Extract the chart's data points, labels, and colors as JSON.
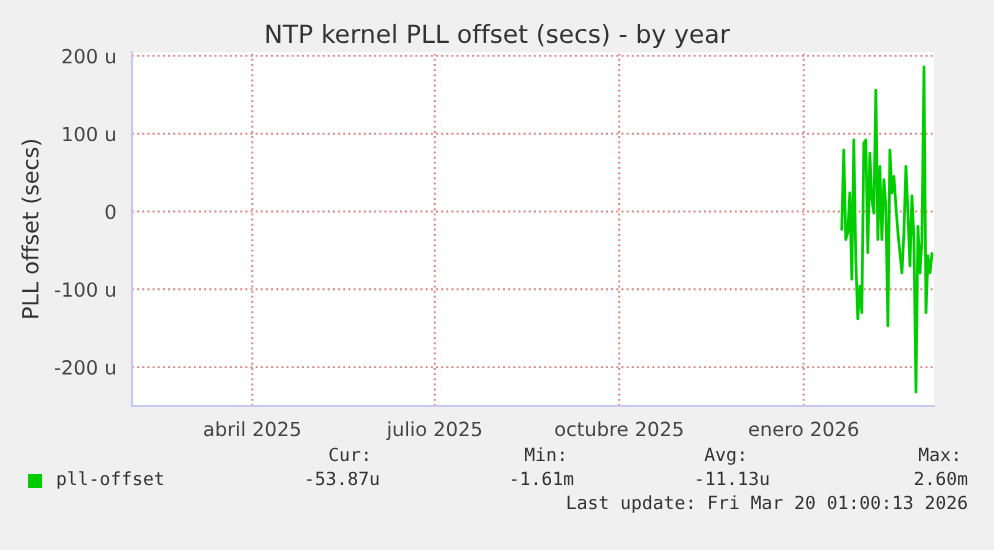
{
  "chart_data": {
    "type": "line",
    "title": "NTP kernel PLL offset (secs) - by year",
    "ylabel": "PLL offset (secs)",
    "xlim": [
      "2025-02-14",
      "2026-03-21"
    ],
    "xticks": [
      {
        "value": "2025-04-15",
        "label": "abril 2025"
      },
      {
        "value": "2025-07-15",
        "label": "julio 2025"
      },
      {
        "value": "2025-10-15",
        "label": "octubre 2025"
      },
      {
        "value": "2026-01-15",
        "label": "enero 2026"
      }
    ],
    "ylim": [
      -250,
      205
    ],
    "yticks": [
      {
        "value": -200,
        "label": "-200 u"
      },
      {
        "value": -100,
        "label": "-100 u"
      },
      {
        "value": 0,
        "label": "0"
      },
      {
        "value": 100,
        "label": "100 u"
      },
      {
        "value": 200,
        "label": "200 u"
      }
    ],
    "grid": true,
    "legend": "bottom left",
    "series": [
      {
        "name": "pll-offset",
        "color": "#00cc00",
        "x": [
          "2026-02-03",
          "2026-02-04",
          "2026-02-05",
          "2026-02-06",
          "2026-02-07",
          "2026-02-08",
          "2026-02-09",
          "2026-02-10",
          "2026-02-11",
          "2026-02-12",
          "2026-02-13",
          "2026-02-14",
          "2026-02-15",
          "2026-02-16",
          "2026-02-17",
          "2026-02-18",
          "2026-02-19",
          "2026-02-20",
          "2026-02-21",
          "2026-02-22",
          "2026-02-23",
          "2026-02-24",
          "2026-02-25",
          "2026-02-26",
          "2026-02-27",
          "2026-02-28",
          "2026-03-01",
          "2026-03-02",
          "2026-03-03",
          "2026-03-04",
          "2026-03-05",
          "2026-03-06",
          "2026-03-07",
          "2026-03-08",
          "2026-03-09",
          "2026-03-10",
          "2026-03-11",
          "2026-03-12",
          "2026-03-13",
          "2026-03-14",
          "2026-03-15",
          "2026-03-16",
          "2026-03-17",
          "2026-03-18",
          "2026-03-19",
          "2026-03-20"
        ],
        "values": [
          -23,
          79,
          -36,
          -27,
          24,
          -87,
          92,
          -62,
          -138,
          -96,
          -130,
          88,
          92,
          -53,
          75,
          15,
          -2,
          156,
          -36,
          58,
          -36,
          41,
          7,
          -147,
          79,
          24,
          45,
          7,
          -27,
          -53,
          -79,
          -27,
          58,
          -2,
          -70,
          20,
          -36,
          -232,
          -19,
          -79,
          -36,
          186,
          -130,
          -57,
          -79,
          -54
        ]
      }
    ],
    "annotations": [
      "Cur:",
      "Min:",
      "Avg:",
      "Max:",
      "-53.87u",
      "-1.61m",
      "-11.13u",
      "2.60m",
      "Last update: Fri Mar 20 01:00:13 2026"
    ]
  }
}
